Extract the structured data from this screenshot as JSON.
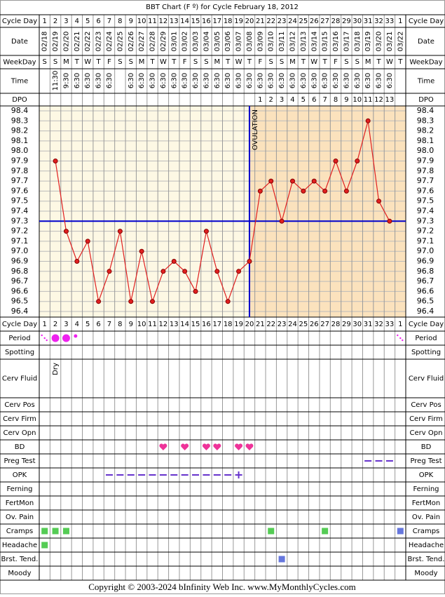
{
  "chart_data": {
    "type": "line",
    "title": "BBT Chart (F º) for Cycle February 18, 2012",
    "upper_labels": [
      "Cycle Day",
      "Date",
      "WeekDay",
      "Time",
      "DPO"
    ],
    "lower_labels": [
      "Cycle Day",
      "Period",
      "Spotting",
      "Cerv Fluid",
      "Cerv Pos",
      "Cerv Firm",
      "Cerv Opn",
      "BD",
      "Preg Test",
      "OPK",
      "Ferning",
      "FertMon",
      "Ov. Pain",
      "Cramps",
      "Headache",
      "Brst. Tend.",
      "Moody"
    ],
    "cycle_days": [
      1,
      2,
      3,
      4,
      5,
      6,
      7,
      8,
      9,
      10,
      11,
      12,
      13,
      14,
      15,
      16,
      17,
      18,
      19,
      20,
      21,
      22,
      23,
      24,
      25,
      26,
      27,
      28,
      29,
      30,
      31,
      32,
      33,
      1
    ],
    "dates": [
      "02/18",
      "02/19",
      "02/20",
      "02/21",
      "02/22",
      "02/23",
      "02/24",
      "02/25",
      "02/26",
      "02/27",
      "02/28",
      "02/29",
      "03/01",
      "03/02",
      "03/03",
      "03/04",
      "03/05",
      "03/06",
      "03/07",
      "03/08",
      "03/09",
      "03/10",
      "03/11",
      "03/12",
      "03/13",
      "03/14",
      "03/15",
      "03/16",
      "03/17",
      "03/18",
      "03/19",
      "03/20",
      "03/21",
      "03/22"
    ],
    "weekdays": [
      "S",
      "S",
      "M",
      "T",
      "W",
      "T",
      "F",
      "S",
      "S",
      "M",
      "T",
      "W",
      "T",
      "F",
      "S",
      "S",
      "M",
      "T",
      "W",
      "T",
      "F",
      "S",
      "S",
      "M",
      "T",
      "W",
      "T",
      "F",
      "S",
      "S",
      "M",
      "T",
      "W",
      "T"
    ],
    "times": [
      null,
      "11:30",
      "9:30",
      "6:30",
      "6:30",
      "6:30",
      "6:30",
      null,
      "6:30",
      "6:30",
      "6:30",
      "6:30",
      "6:30",
      "6:30",
      "6:30",
      "6:30",
      "6:30",
      "6:30",
      "6:30",
      "6:30",
      "6:30",
      "6:30",
      "6:30",
      "6:30",
      "6:30",
      "6:30",
      "6:30",
      "6:30",
      "6:30",
      "6:30",
      "6:30",
      "6:30",
      "6:30",
      null
    ],
    "dpo": [
      null,
      null,
      null,
      null,
      null,
      null,
      null,
      null,
      null,
      null,
      null,
      null,
      null,
      null,
      null,
      null,
      null,
      null,
      null,
      null,
      1,
      2,
      3,
      4,
      5,
      6,
      7,
      8,
      9,
      10,
      11,
      12,
      13,
      null
    ],
    "values": [
      null,
      97.9,
      97.2,
      96.9,
      97.1,
      96.5,
      96.8,
      97.2,
      96.5,
      97.0,
      96.5,
      96.8,
      96.9,
      96.8,
      96.6,
      97.2,
      96.8,
      96.5,
      96.8,
      96.9,
      97.6,
      97.7,
      97.3,
      97.7,
      97.6,
      97.7,
      97.6,
      97.9,
      97.6,
      97.9,
      98.3,
      97.5,
      97.3,
      null
    ],
    "color": "#e02020",
    "ylim": [
      96.4,
      98.4
    ],
    "yticks": [
      {
        "value": 98.4,
        "label": "98.4"
      },
      98.3,
      98.2,
      98.1,
      {
        "value": 98,
        "label": "98.0"
      },
      97.9,
      97.8,
      97.7,
      97.6,
      97.5,
      97.4,
      97.3,
      97.2,
      97.1,
      {
        "value": 97,
        "label": "97.0"
      },
      96.9,
      96.8,
      96.7,
      96.6,
      96.5,
      96.4
    ],
    "coverline": 97.3,
    "ovulation_day": 20,
    "ovulation_label": "OVULATION",
    "cerv_fluid": [
      null,
      "Dry",
      null,
      null,
      null,
      null,
      null,
      null,
      null,
      null,
      null,
      null,
      null,
      null,
      null,
      null,
      null,
      null,
      null,
      null,
      null,
      null,
      null,
      null,
      null,
      null,
      null,
      null,
      null,
      null,
      null,
      null,
      null,
      null
    ]
  },
  "footer": "Copyright © 2003-2024 bInfinity Web Inc.     www.MyMonthlyCycles.com"
}
